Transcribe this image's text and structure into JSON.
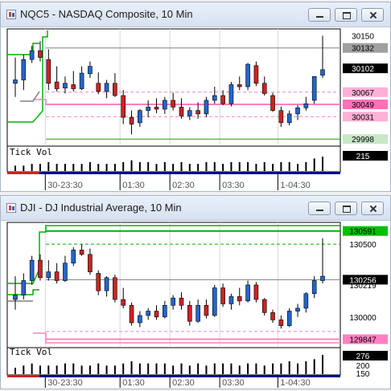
{
  "windows": [
    {
      "id": "nq",
      "title": "NQC5 - NASDAQ Composite, 10 Min",
      "axis_labels": [
        "30150",
        "30132",
        "30102",
        "30067",
        "30049",
        "30031",
        "29998"
      ],
      "volume_label": "Tick Vol",
      "volume_value": "215",
      "time_labels": [
        "30-23:30",
        "01:30",
        "02:30",
        "03:30",
        "1-04:30"
      ]
    },
    {
      "id": "dji",
      "title": "DJI - DJ Industrial Average, 10 Min",
      "axis_labels": [
        "130591",
        "130500",
        "130256",
        "130219",
        "130000",
        "129847"
      ],
      "volume_label": "Tick Vol",
      "volume_value": "276",
      "volume_axis": [
        "200",
        "150"
      ],
      "time_labels": [
        "30-23:30",
        "01:30",
        "02:30",
        "03:30",
        "1-04:30"
      ]
    }
  ],
  "colors": {
    "up": "#2266cc",
    "down": "#cc2222",
    "green_line": "#00b400",
    "pink_line": "#ff80c0",
    "axis_bg": "#ffffff"
  },
  "chart_data": [
    {
      "type": "candlestick",
      "title": "NQC5 - NASDAQ Composite, 10 Min",
      "ylim": [
        29990,
        30160
      ],
      "time_ticks": [
        "30-23:30",
        "01:30",
        "02:30",
        "03:30",
        "1-04:30"
      ],
      "candles": [
        {
          "o": 30080,
          "h": 30118,
          "l": 30060,
          "c": 30085
        },
        {
          "o": 30085,
          "h": 30122,
          "l": 30070,
          "c": 30115
        },
        {
          "o": 30115,
          "h": 30135,
          "l": 30110,
          "c": 30128
        },
        {
          "o": 30128,
          "h": 30142,
          "l": 30112,
          "c": 30118
        },
        {
          "o": 30115,
          "h": 30130,
          "l": 30070,
          "c": 30080
        },
        {
          "o": 30082,
          "h": 30105,
          "l": 30068,
          "c": 30072
        },
        {
          "o": 30073,
          "h": 30090,
          "l": 30065,
          "c": 30080
        },
        {
          "o": 30078,
          "h": 30098,
          "l": 30068,
          "c": 30072
        },
        {
          "o": 30072,
          "h": 30105,
          "l": 30070,
          "c": 30095
        },
        {
          "o": 30094,
          "h": 30112,
          "l": 30088,
          "c": 30105
        },
        {
          "o": 30080,
          "h": 30096,
          "l": 30064,
          "c": 30068
        },
        {
          "o": 30068,
          "h": 30085,
          "l": 30058,
          "c": 30080
        },
        {
          "o": 30080,
          "h": 30095,
          "l": 30060,
          "c": 30062
        },
        {
          "o": 30062,
          "h": 30070,
          "l": 30020,
          "c": 30030
        },
        {
          "o": 30030,
          "h": 30040,
          "l": 30005,
          "c": 30020
        },
        {
          "o": 30022,
          "h": 30042,
          "l": 30016,
          "c": 30040
        },
        {
          "o": 30040,
          "h": 30055,
          "l": 30030,
          "c": 30045
        },
        {
          "o": 30045,
          "h": 30058,
          "l": 30036,
          "c": 30042
        },
        {
          "o": 30042,
          "h": 30060,
          "l": 30035,
          "c": 30055
        },
        {
          "o": 30055,
          "h": 30066,
          "l": 30040,
          "c": 30045
        },
        {
          "o": 30045,
          "h": 30058,
          "l": 30028,
          "c": 30032
        },
        {
          "o": 30032,
          "h": 30045,
          "l": 30026,
          "c": 30040
        },
        {
          "o": 30040,
          "h": 30052,
          "l": 30028,
          "c": 30035
        },
        {
          "o": 30035,
          "h": 30060,
          "l": 30030,
          "c": 30055
        },
        {
          "o": 30055,
          "h": 30075,
          "l": 30050,
          "c": 30062
        },
        {
          "o": 30062,
          "h": 30070,
          "l": 30048,
          "c": 30050
        },
        {
          "o": 30050,
          "h": 30082,
          "l": 30046,
          "c": 30078
        },
        {
          "o": 30078,
          "h": 30090,
          "l": 30070,
          "c": 30075
        },
        {
          "o": 30075,
          "h": 30110,
          "l": 30070,
          "c": 30108
        },
        {
          "o": 30106,
          "h": 30112,
          "l": 30076,
          "c": 30080
        },
        {
          "o": 30080,
          "h": 30090,
          "l": 30062,
          "c": 30065
        },
        {
          "o": 30062,
          "h": 30066,
          "l": 30038,
          "c": 30040
        },
        {
          "o": 30040,
          "h": 30046,
          "l": 30016,
          "c": 30022
        },
        {
          "o": 30022,
          "h": 30040,
          "l": 30018,
          "c": 30035
        },
        {
          "o": 30035,
          "h": 30048,
          "l": 30026,
          "c": 30044
        },
        {
          "o": 30044,
          "h": 30060,
          "l": 30040,
          "c": 30050
        },
        {
          "o": 30055,
          "h": 30090,
          "l": 30050,
          "c": 30090
        },
        {
          "o": 30092,
          "h": 30150,
          "l": 30088,
          "c": 30100
        }
      ],
      "volume": [
        3,
        3,
        4,
        4,
        5,
        4,
        4,
        4,
        4,
        5,
        4,
        4,
        4,
        5,
        6,
        5,
        5,
        4,
        5,
        4,
        5,
        4,
        4,
        5,
        5,
        4,
        5,
        5,
        5,
        4,
        5,
        4,
        5,
        5,
        4,
        5,
        7,
        8
      ]
    },
    {
      "type": "candlestick",
      "title": "DJI - DJ Industrial Average, 10 Min",
      "ylim": [
        129800,
        130650
      ],
      "time_ticks": [
        "30-23:30",
        "01:30",
        "02:30",
        "03:30",
        "1-04:30"
      ],
      "candles": [
        {
          "o": 130120,
          "h": 130280,
          "l": 130050,
          "c": 130150
        },
        {
          "o": 130150,
          "h": 130300,
          "l": 130120,
          "c": 130250
        },
        {
          "o": 130250,
          "h": 130420,
          "l": 130220,
          "c": 130390
        },
        {
          "o": 130390,
          "h": 130430,
          "l": 130250,
          "c": 130270
        },
        {
          "o": 130270,
          "h": 130390,
          "l": 130250,
          "c": 130310
        },
        {
          "o": 130310,
          "h": 130370,
          "l": 130230,
          "c": 130250
        },
        {
          "o": 130250,
          "h": 130420,
          "l": 130240,
          "c": 130370
        },
        {
          "o": 130370,
          "h": 130480,
          "l": 130350,
          "c": 130460
        },
        {
          "o": 130460,
          "h": 130500,
          "l": 130420,
          "c": 130430
        },
        {
          "o": 130430,
          "h": 130470,
          "l": 130290,
          "c": 130310
        },
        {
          "o": 130300,
          "h": 130320,
          "l": 130150,
          "c": 130180
        },
        {
          "o": 130180,
          "h": 130280,
          "l": 130140,
          "c": 130270
        },
        {
          "o": 130270,
          "h": 130290,
          "l": 130100,
          "c": 130120
        },
        {
          "o": 130120,
          "h": 130200,
          "l": 130060,
          "c": 130080
        },
        {
          "o": 130080,
          "h": 130100,
          "l": 129940,
          "c": 129960
        },
        {
          "o": 129960,
          "h": 130040,
          "l": 129930,
          "c": 130010
        },
        {
          "o": 130010,
          "h": 130060,
          "l": 129980,
          "c": 130040
        },
        {
          "o": 130040,
          "h": 130080,
          "l": 129980,
          "c": 130000
        },
        {
          "o": 130000,
          "h": 130110,
          "l": 129990,
          "c": 130080
        },
        {
          "o": 130080,
          "h": 130150,
          "l": 130050,
          "c": 130130
        },
        {
          "o": 130130,
          "h": 130170,
          "l": 130050,
          "c": 130080
        },
        {
          "o": 130080,
          "h": 130110,
          "l": 129940,
          "c": 129970
        },
        {
          "o": 129970,
          "h": 130120,
          "l": 129960,
          "c": 130080
        },
        {
          "o": 130080,
          "h": 130120,
          "l": 129990,
          "c": 130010
        },
        {
          "o": 130010,
          "h": 130220,
          "l": 130000,
          "c": 130200
        },
        {
          "o": 130200,
          "h": 130230,
          "l": 130070,
          "c": 130090
        },
        {
          "o": 130090,
          "h": 130160,
          "l": 130050,
          "c": 130140
        },
        {
          "o": 130140,
          "h": 130200,
          "l": 130080,
          "c": 130110
        },
        {
          "o": 130110,
          "h": 130250,
          "l": 130100,
          "c": 130220
        },
        {
          "o": 130220,
          "h": 130240,
          "l": 130100,
          "c": 130120
        },
        {
          "o": 130120,
          "h": 130130,
          "l": 130010,
          "c": 130030
        },
        {
          "o": 130030,
          "h": 130050,
          "l": 129960,
          "c": 129980
        },
        {
          "o": 129980,
          "h": 130010,
          "l": 129920,
          "c": 129940
        },
        {
          "o": 129940,
          "h": 130060,
          "l": 129930,
          "c": 130040
        },
        {
          "o": 130040,
          "h": 130090,
          "l": 130000,
          "c": 130060
        },
        {
          "o": 130060,
          "h": 130170,
          "l": 130030,
          "c": 130160
        },
        {
          "o": 130160,
          "h": 130280,
          "l": 130130,
          "c": 130250
        },
        {
          "o": 130250,
          "h": 130540,
          "l": 130230,
          "c": 130280
        }
      ],
      "volume": [
        3,
        4,
        5,
        4,
        4,
        4,
        5,
        5,
        4,
        4,
        5,
        4,
        4,
        5,
        6,
        5,
        5,
        5,
        5,
        4,
        5,
        4,
        5,
        4,
        5,
        5,
        5,
        4,
        5,
        5,
        4,
        5,
        5,
        6,
        5,
        6,
        7,
        9
      ]
    }
  ]
}
